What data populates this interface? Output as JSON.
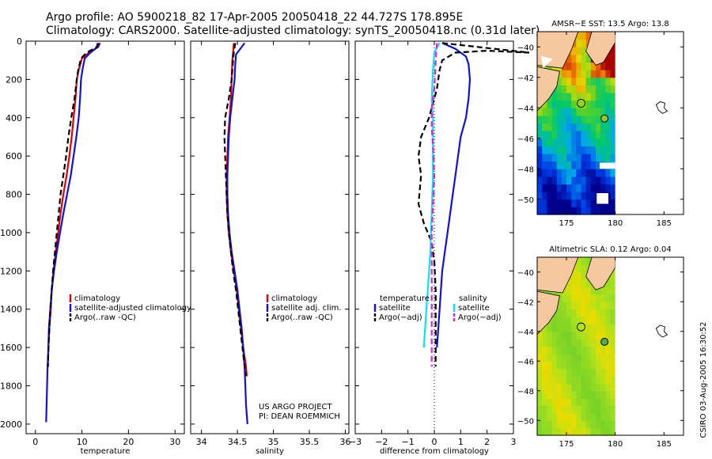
{
  "header": {
    "line1": "Argo profile: AO 5900218_82 17-Apr-2005 20050418_22 44.727S 178.895E",
    "line2": "Climatology: CARS2000. Satellite-adjusted climatology: synTS_20050418.nc (0.31d later)"
  },
  "credit": {
    "project": "US ARGO PROJECT",
    "pi": "PI: DEAN ROEMMICH"
  },
  "vertical_stamp": "CSIRO 03-Aug-2005 16:30:52",
  "colors": {
    "climatology": "#e00000",
    "satellite": "#1010e0",
    "argo": "#000000",
    "sal_satellite": "#00e8f0",
    "sal_argo": "#e020e0",
    "land": "#f5c8a0"
  },
  "chart_data": [
    {
      "type": "line",
      "xlabel": "temperature",
      "ylabel": "",
      "xlim": [
        -2,
        32
      ],
      "ylim": [
        2050,
        0
      ],
      "y_reversed": true,
      "x_ticks": [
        0,
        10,
        20,
        30
      ],
      "y_ticks": [
        0,
        200,
        400,
        600,
        800,
        1000,
        1200,
        1400,
        1600,
        1800,
        2000
      ],
      "legend": [
        "climatology",
        "satellite-adjusted climatology",
        "Argo(..raw -QC)"
      ],
      "legend_position": "lower-right",
      "series": [
        {
          "name": "climatology",
          "color": "#e00000",
          "dash": "solid",
          "points": [
            [
              13.9,
              10
            ],
            [
              13.5,
              30
            ],
            [
              11.5,
              60
            ],
            [
              10.0,
              90
            ],
            [
              9.3,
              150
            ],
            [
              8.9,
              200
            ],
            [
              8.6,
              300
            ],
            [
              8.2,
              400
            ],
            [
              7.8,
              500
            ],
            [
              7.3,
              600
            ],
            [
              6.7,
              700
            ],
            [
              6.0,
              800
            ],
            [
              5.4,
              900
            ],
            [
              4.9,
              1000
            ],
            [
              4.4,
              1100
            ],
            [
              3.9,
              1200
            ],
            [
              3.5,
              1300
            ],
            [
              3.3,
              1400
            ],
            [
              3.0,
              1500
            ],
            [
              2.8,
              1600
            ],
            [
              2.7,
              1700
            ]
          ]
        },
        {
          "name": "satellite-adjusted climatology",
          "color": "#1010e0",
          "dash": "solid",
          "points": [
            [
              13.8,
              10
            ],
            [
              13.4,
              30
            ],
            [
              11.8,
              60
            ],
            [
              10.6,
              90
            ],
            [
              10.1,
              150
            ],
            [
              9.8,
              200
            ],
            [
              9.6,
              300
            ],
            [
              9.3,
              400
            ],
            [
              8.8,
              500
            ],
            [
              8.2,
              600
            ],
            [
              7.6,
              700
            ],
            [
              6.8,
              800
            ],
            [
              6.0,
              900
            ],
            [
              5.3,
              1000
            ],
            [
              4.6,
              1100
            ],
            [
              4.0,
              1200
            ],
            [
              3.5,
              1300
            ],
            [
              3.2,
              1400
            ],
            [
              2.9,
              1500
            ],
            [
              2.8,
              1600
            ],
            [
              2.6,
              1700
            ],
            [
              2.5,
              1800
            ],
            [
              2.4,
              1900
            ],
            [
              2.3,
              1990
            ]
          ]
        },
        {
          "name": "Argo(..raw -QC)",
          "color": "#000000",
          "dash": "dash",
          "points": [
            [
              13.4,
              10
            ],
            [
              13.2,
              30
            ],
            [
              11.0,
              60
            ],
            [
              9.8,
              90
            ],
            [
              9.2,
              150
            ],
            [
              8.9,
              200
            ],
            [
              8.4,
              300
            ],
            [
              7.7,
              400
            ],
            [
              7.1,
              500
            ],
            [
              6.6,
              600
            ],
            [
              6.0,
              700
            ],
            [
              5.4,
              800
            ],
            [
              5.0,
              900
            ],
            [
              4.6,
              1000
            ],
            [
              4.2,
              1100
            ],
            [
              3.8,
              1200
            ],
            [
              3.5,
              1300
            ],
            [
              3.2,
              1400
            ],
            [
              3.0,
              1500
            ],
            [
              2.8,
              1600
            ],
            [
              2.7,
              1700
            ]
          ]
        }
      ]
    },
    {
      "type": "line",
      "xlabel": "salinity",
      "ylabel": "",
      "xlim": [
        33.85,
        36.05
      ],
      "ylim": [
        2050,
        0
      ],
      "y_reversed": true,
      "x_ticks": [
        34,
        34.5,
        35,
        35.5,
        36
      ],
      "legend": [
        "climatology",
        "satellite adj. clim.",
        "Argo(..raw -QC)"
      ],
      "legend_position": "lower-right",
      "series": [
        {
          "name": "climatology",
          "color": "#e00000",
          "dash": "solid",
          "points": [
            [
              34.45,
              10
            ],
            [
              34.44,
              60
            ],
            [
              34.43,
              100
            ],
            [
              34.42,
              200
            ],
            [
              34.41,
              300
            ],
            [
              34.39,
              400
            ],
            [
              34.37,
              500
            ],
            [
              34.36,
              600
            ],
            [
              34.35,
              700
            ],
            [
              34.35,
              800
            ],
            [
              34.36,
              900
            ],
            [
              34.38,
              1000
            ],
            [
              34.41,
              1100
            ],
            [
              34.45,
              1200
            ],
            [
              34.49,
              1300
            ],
            [
              34.52,
              1400
            ],
            [
              34.55,
              1500
            ],
            [
              34.58,
              1600
            ],
            [
              34.62,
              1700
            ],
            [
              34.63,
              1750
            ]
          ]
        },
        {
          "name": "satellite adj. clim.",
          "color": "#1010e0",
          "dash": "solid",
          "points": [
            [
              34.6,
              10
            ],
            [
              34.48,
              70
            ],
            [
              34.47,
              120
            ],
            [
              34.46,
              200
            ],
            [
              34.43,
              300
            ],
            [
              34.4,
              400
            ],
            [
              34.38,
              500
            ],
            [
              34.37,
              600
            ],
            [
              34.36,
              700
            ],
            [
              34.36,
              800
            ],
            [
              34.37,
              900
            ],
            [
              34.39,
              1000
            ],
            [
              34.42,
              1100
            ],
            [
              34.46,
              1200
            ],
            [
              34.5,
              1300
            ],
            [
              34.53,
              1400
            ],
            [
              34.56,
              1500
            ],
            [
              34.58,
              1600
            ],
            [
              34.6,
              1700
            ],
            [
              34.61,
              1800
            ],
            [
              34.62,
              1900
            ],
            [
              34.64,
              2000
            ]
          ]
        },
        {
          "name": "Argo(..raw -QC)",
          "color": "#000000",
          "dash": "dash",
          "points": [
            [
              34.47,
              10
            ],
            [
              34.45,
              60
            ],
            [
              34.44,
              100
            ],
            [
              34.42,
              200
            ],
            [
              34.38,
              300
            ],
            [
              34.33,
              400
            ],
            [
              34.32,
              500
            ],
            [
              34.33,
              600
            ],
            [
              34.34,
              700
            ],
            [
              34.35,
              800
            ],
            [
              34.36,
              900
            ],
            [
              34.38,
              1000
            ],
            [
              34.41,
              1100
            ],
            [
              34.44,
              1200
            ],
            [
              34.48,
              1300
            ],
            [
              34.51,
              1400
            ],
            [
              34.54,
              1500
            ],
            [
              34.57,
              1600
            ],
            [
              34.6,
              1700
            ],
            [
              34.62,
              1750
            ]
          ]
        }
      ]
    },
    {
      "type": "line",
      "xlabel": "difference from climatology",
      "ylabel": "",
      "xlim": [
        -3,
        3
      ],
      "ylim": [
        2050,
        0
      ],
      "y_reversed": true,
      "x_ticks": [
        -3,
        -2,
        -1,
        0,
        1,
        2,
        3
      ],
      "legend": [
        "temperature",
        "satellite",
        "Argo(−adj)",
        "salinity",
        "satellite",
        "Argo(−adj)"
      ],
      "legend_position": "lower-center",
      "series": [
        {
          "name": "temperature satellite",
          "color": "#1010e0",
          "dash": "solid",
          "points": [
            [
              0.3,
              10
            ],
            [
              0.8,
              40
            ],
            [
              1.2,
              80
            ],
            [
              1.3,
              120
            ],
            [
              1.35,
              200
            ],
            [
              1.3,
              300
            ],
            [
              1.2,
              400
            ],
            [
              1.0,
              500
            ],
            [
              0.9,
              600
            ],
            [
              0.8,
              700
            ],
            [
              0.7,
              800
            ],
            [
              0.6,
              900
            ],
            [
              0.5,
              1000
            ],
            [
              0.4,
              1100
            ],
            [
              0.3,
              1200
            ],
            [
              0.25,
              1300
            ],
            [
              0.2,
              1400
            ],
            [
              0.15,
              1500
            ],
            [
              0.1,
              1600
            ]
          ]
        },
        {
          "name": "temperature Argo(−adj)",
          "color": "#000000",
          "dash": "dash",
          "points": [
            [
              0.3,
              10
            ],
            [
              3.6,
              60
            ],
            [
              2.0,
              50
            ],
            [
              0.8,
              60
            ],
            [
              0.3,
              100
            ],
            [
              0.2,
              150
            ],
            [
              0.1,
              250
            ],
            [
              -0.2,
              400
            ],
            [
              -0.5,
              500
            ],
            [
              -0.6,
              600
            ],
            [
              -0.5,
              700
            ],
            [
              -0.6,
              850
            ],
            [
              -0.4,
              950
            ],
            [
              -0.1,
              1050
            ],
            [
              0.0,
              1150
            ],
            [
              0.05,
              1300
            ],
            [
              0.05,
              1500
            ],
            [
              0.05,
              1600
            ],
            [
              0.05,
              1700
            ]
          ]
        },
        {
          "name": "salinity satellite",
          "color": "#00e8f0",
          "dash": "solid",
          "points": [
            [
              0.2,
              10
            ],
            [
              0.0,
              60
            ],
            [
              -0.05,
              150
            ],
            [
              -0.1,
              300
            ],
            [
              -0.05,
              400
            ],
            [
              -0.05,
              500
            ],
            [
              -0.05,
              700
            ],
            [
              -0.1,
              900
            ],
            [
              -0.15,
              1100
            ],
            [
              -0.25,
              1300
            ],
            [
              -0.35,
              1500
            ],
            [
              -0.4,
              1600
            ]
          ]
        },
        {
          "name": "salinity Argo(−adj)",
          "color": "#e020e0",
          "dash": "dash",
          "points": [
            [
              0.1,
              10
            ],
            [
              0.05,
              100
            ],
            [
              0.0,
              250
            ],
            [
              -0.1,
              350
            ],
            [
              -0.1,
              450
            ],
            [
              -0.05,
              550
            ],
            [
              0.0,
              700
            ],
            [
              -0.05,
              850
            ],
            [
              -0.1,
              1000
            ],
            [
              -0.1,
              1200
            ],
            [
              -0.1,
              1400
            ],
            [
              -0.1,
              1600
            ],
            [
              -0.1,
              1700
            ]
          ]
        }
      ]
    },
    {
      "type": "heatmap",
      "title": "AMSR−E SST: 13.5 Argo: 13.8",
      "xlim": [
        172,
        187
      ],
      "ylim": [
        -51,
        -39
      ],
      "x_ticks": [
        175,
        180,
        185
      ],
      "y_ticks": [
        -40,
        -42,
        -44,
        -46,
        -48,
        -50
      ],
      "marker": [
        178.9,
        -44.7
      ]
    },
    {
      "type": "heatmap",
      "title": "Altimetric SLA: 0.12 Argo: 0.04",
      "xlim": [
        172,
        187
      ],
      "ylim": [
        -51,
        -39
      ],
      "x_ticks": [
        175,
        180,
        185
      ],
      "y_ticks": [
        -40,
        -42,
        -44,
        -46,
        -48,
        -50
      ],
      "marker": [
        178.9,
        -44.7
      ]
    }
  ]
}
